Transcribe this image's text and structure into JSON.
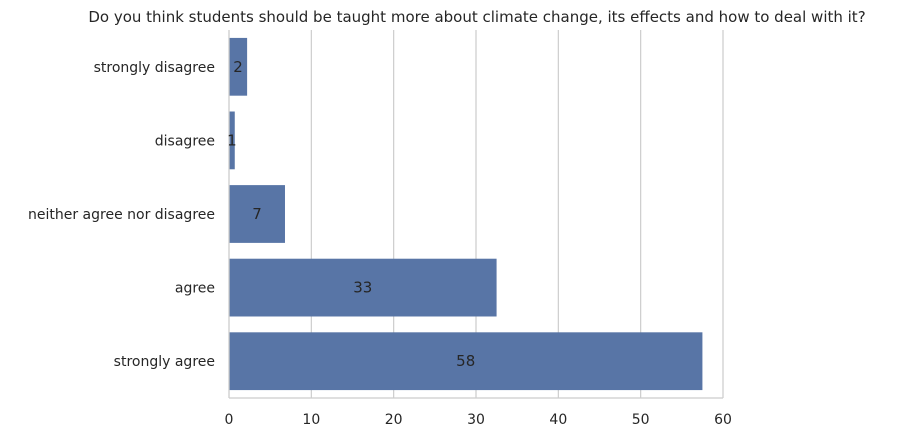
{
  "chart_data": {
    "type": "bar",
    "orientation": "horizontal",
    "title": "Do you think students should be taught more about climate change, its effects and how to deal with it?",
    "xlabel": "",
    "ylabel": "",
    "categories": [
      "strongly disagree",
      "disagree",
      "neither agree nor disagree",
      "agree",
      "strongly agree"
    ],
    "values": [
      2.2,
      0.7,
      6.8,
      32.5,
      57.5
    ],
    "data_labels": [
      "2",
      "1",
      "7",
      "33",
      "58"
    ],
    "xlim": [
      0,
      60
    ],
    "xticks": [
      0,
      10,
      20,
      30,
      40,
      50,
      60
    ],
    "grid": "vertical",
    "bar_color": "#5875a6",
    "grid_color": "#cccccc"
  }
}
